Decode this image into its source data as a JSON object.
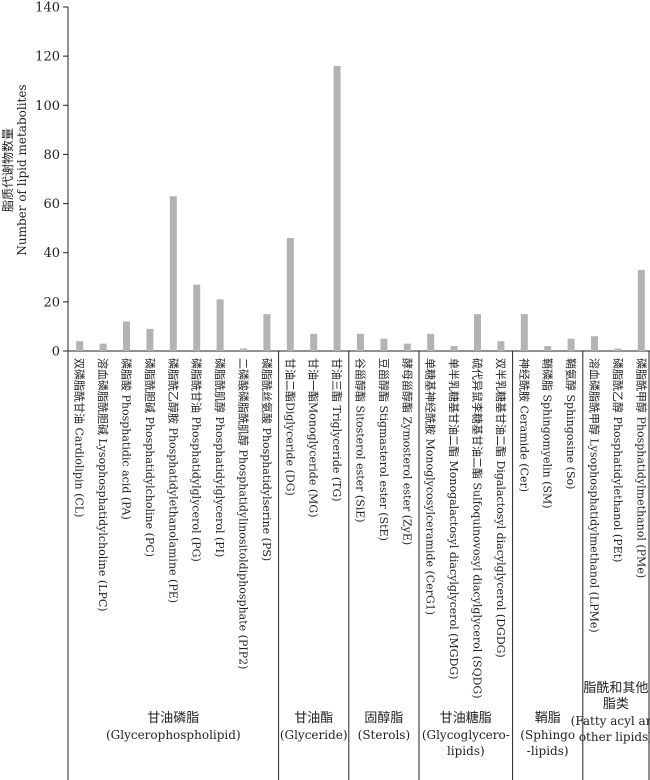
{
  "chart_data": {
    "type": "bar",
    "ylabel_zh": "脂质代谢物数量",
    "ylabel_en": "Number of lipid metabolites",
    "ylim": [
      0,
      140
    ],
    "yticks": [
      0,
      20,
      40,
      60,
      80,
      100,
      120,
      140
    ],
    "bar_color": "#b3b3b3",
    "categories": [
      "双磷脂酰甘油 Cardiolipin (CL)",
      "溶血磷脂酰胆碱 Lysophosphatidylcholine (LPC)",
      "磷脂酸 Phosphatidic acid (PA)",
      "磷脂酰胆碱 Phosphatidylcholine (PC)",
      "磷脂酰乙醇胺 Phosphatidylethanolamine (PE)",
      "磷脂酰甘油 Phosphatidylglycerol (PG)",
      "磷脂酰肌醇 Phosphatidylglycerol (PI)",
      "二磷酸磷脂酰肌醇 Phosphatidylinositoldiphosphate (PIP2)",
      "磷脂酰丝氨酸 Phosphatidylserine (PS)",
      "甘油二酯Diglyceride (DG)",
      "甘油一酯Monoglyceride (MG)",
      "甘油三酯 Triglyceride (TG)",
      "谷甾醇酯 Sitosterol ester (SiE)",
      "豆甾醇酯 Stigmasterol ester (StE)",
      "酵母甾醇酯 Zymosterol ester (ZyE)",
      "单糖基神经酰胺 Monoglycosylceramide (CerG1)",
      "单半乳糖基甘油二酯 Monogalactosyl diacylglycerol (MGDG)",
      "硫代异鼠李糖基甘油二酯 Sulfoquinovosyl diacylglycerol (SQDG)",
      "双半乳糖基甘油二酯 Digalactosyl diacylglycerol (DGDG)",
      "神经酰胺 Ceramide (Cer)",
      "鞘磷脂 Sphingomyelin (SM)",
      "鞘氨醇 Sphingosine (So)",
      "溶血磷脂酰甲醇 Lysophosphatidylmethanol (LPMe)",
      "磷脂酰乙醇 Phosphatidylethanol (PEt)",
      "磷脂酰甲醇 Phosphatidylmethanol (PMe)"
    ],
    "values": [
      4,
      3,
      12,
      9,
      63,
      27,
      21,
      1,
      15,
      46,
      7,
      116,
      7,
      5,
      3,
      7,
      2,
      15,
      4,
      15,
      2,
      5,
      6,
      1,
      33
    ],
    "groups": [
      {
        "zh": "甘油磷脂",
        "en": "(Glycerophospholipid)",
        "count": 9
      },
      {
        "zh": "甘油酯",
        "en": "(Glyceride)",
        "count": 3
      },
      {
        "zh": "固醇脂",
        "en": "(Sterols)",
        "count": 3
      },
      {
        "zh": "甘油糖脂",
        "en": "(Glycoglycero-",
        "en2": "lipids)",
        "count": 4
      },
      {
        "zh": "鞘脂",
        "en": "(Sphingo",
        "en2": "-lipids)",
        "count": 3
      },
      {
        "zh": "脂酰和其他",
        "zh2": "脂类",
        "en": "(Fatty acyl and",
        "en2": "other lipids)",
        "count": 3
      }
    ]
  }
}
